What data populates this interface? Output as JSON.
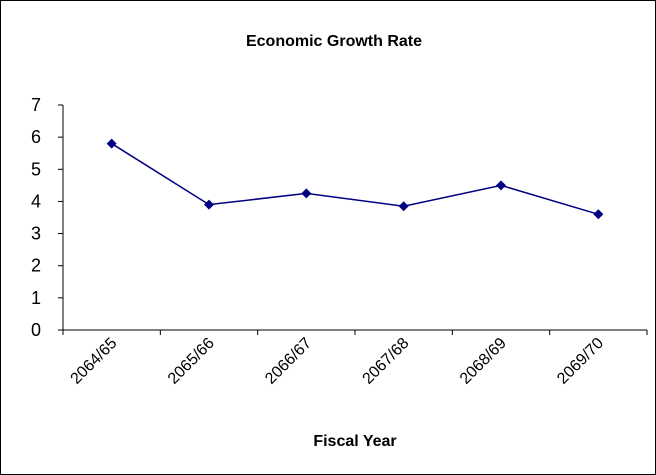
{
  "chart_data": {
    "type": "line",
    "title": "Economic Growth Rate",
    "xlabel": "Fiscal Year",
    "ylabel": "",
    "categories": [
      "2064/65",
      "2065/66",
      "2066/67",
      "2067/68",
      "2068/69",
      "2069/70"
    ],
    "series": [
      {
        "values": [
          5.8,
          3.9,
          4.25,
          3.85,
          4.5,
          3.6
        ]
      }
    ],
    "ylim": [
      0,
      7
    ],
    "yticks": [
      "0",
      "1",
      "2",
      "3",
      "4",
      "5",
      "6",
      "7"
    ],
    "grid": false,
    "legend": "none",
    "colors": {
      "series": "#000080",
      "marker": "#000080",
      "axis": "#000000",
      "border": "#000000"
    }
  }
}
